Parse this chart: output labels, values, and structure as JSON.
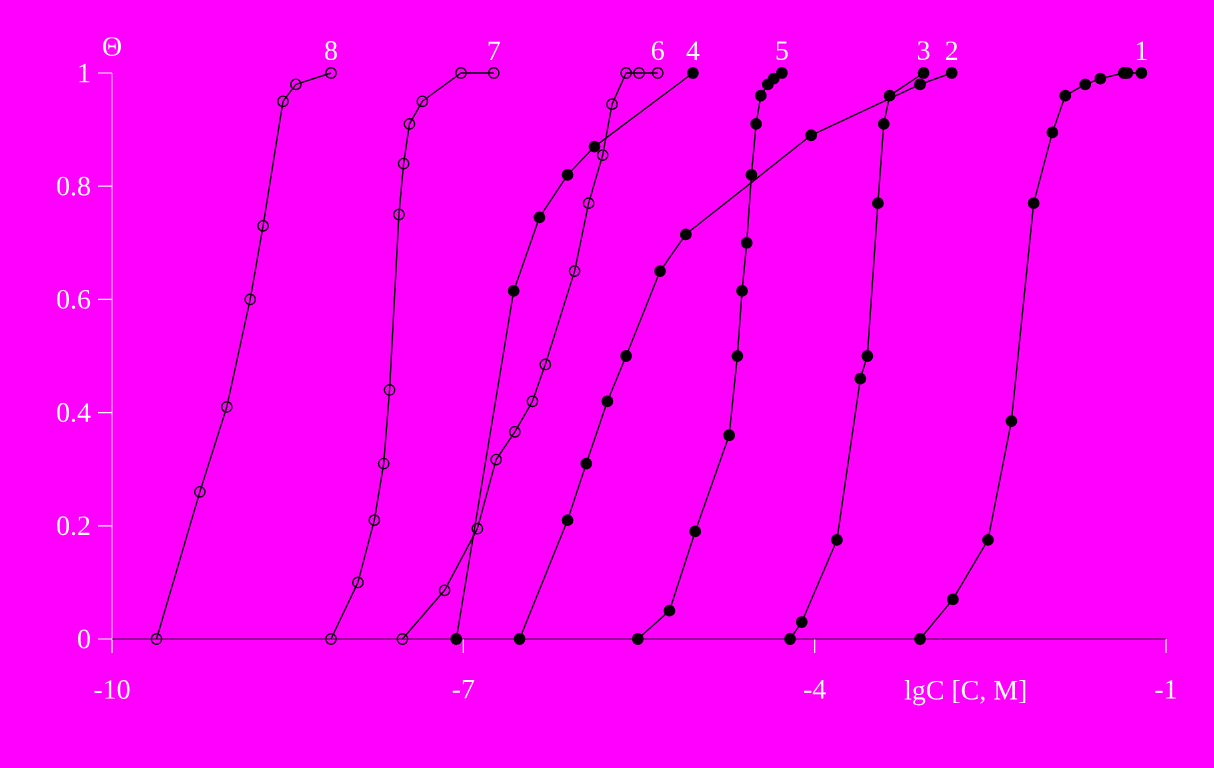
{
  "chart_data": {
    "type": "line",
    "xlabel": "lgC [C, M]",
    "ylabel": "Θ",
    "xlim": [
      -10,
      -1
    ],
    "xticks": [
      -10,
      -7,
      -4,
      -1
    ],
    "ylim": [
      0,
      1
    ],
    "yticks": [
      0,
      0.2,
      0.4,
      0.6,
      0.8,
      1
    ],
    "grid": false,
    "line_style": "solid",
    "series": [
      {
        "name": "1",
        "color": "#000000",
        "marker": "circle",
        "x": [
          -3.1,
          -2.82,
          -2.52,
          -2.32,
          -2.13,
          -1.97,
          -1.86,
          -1.69,
          -1.56,
          -1.36,
          -1.33,
          -1.21
        ],
        "values": [
          0,
          0.07,
          0.175,
          0.385,
          0.77,
          0.895,
          0.96,
          0.98,
          0.99,
          1,
          1,
          1
        ]
      },
      {
        "name": "2",
        "color": "#000000",
        "marker": "circle",
        "x": [
          -6.52,
          -6.11,
          -5.95,
          -5.77,
          -5.61,
          -5.32,
          -5.1,
          -4.03,
          -3.1,
          -2.83
        ],
        "values": [
          0,
          0.21,
          0.31,
          0.42,
          0.5,
          0.65,
          0.715,
          0.89,
          0.98,
          1.0
        ]
      },
      {
        "name": "3",
        "color": "#000000",
        "marker": "circle",
        "x": [
          -4.21,
          -4.11,
          -3.81,
          -3.61,
          -3.55,
          -3.46,
          -3.41,
          -3.36,
          -3.07
        ],
        "values": [
          0,
          0.03,
          0.175,
          0.46,
          0.5,
          0.77,
          0.91,
          0.96,
          1.0
        ]
      },
      {
        "name": "4",
        "color": "#000000",
        "marker": "circle",
        "x": [
          -7.06,
          -6.57,
          -6.35,
          -6.11,
          -5.88,
          -5.04
        ],
        "values": [
          0,
          0.615,
          0.745,
          0.82,
          0.87,
          1.0
        ]
      },
      {
        "name": "5",
        "color": "#000000",
        "marker": "circle",
        "x": [
          -5.51,
          -5.24,
          -5.02,
          -4.73,
          -4.66,
          -4.62,
          -4.58,
          -4.54,
          -4.5,
          -4.46,
          -4.4,
          -4.35,
          -4.28
        ],
        "values": [
          0,
          0.05,
          0.19,
          0.36,
          0.5,
          0.615,
          0.7,
          0.82,
          0.91,
          0.96,
          0.98,
          0.99,
          1.0
        ]
      },
      {
        "name": "6",
        "color": "#000000",
        "marker": "circle-open",
        "x": [
          -7.52,
          -7.16,
          -6.88,
          -6.72,
          -6.56,
          -6.41,
          -6.3,
          -6.05,
          -5.93,
          -5.81,
          -5.73,
          -5.61,
          -5.5,
          -5.34
        ],
        "values": [
          0,
          0.086,
          0.195,
          0.317,
          0.366,
          0.42,
          0.485,
          0.65,
          0.77,
          0.855,
          0.945,
          1,
          1,
          1
        ]
      },
      {
        "name": "7",
        "color": "#000000",
        "marker": "circle-open",
        "x": [
          -8.13,
          -7.9,
          -7.76,
          -7.68,
          -7.63,
          -7.55,
          -7.51,
          -7.46,
          -7.35,
          -7.02,
          -6.74
        ],
        "values": [
          0,
          0.1,
          0.21,
          0.31,
          0.44,
          0.75,
          0.84,
          0.91,
          0.95,
          1.0,
          1.0
        ]
      },
      {
        "name": "8",
        "color": "#000000",
        "marker": "circle-open",
        "x": [
          -9.62,
          -9.25,
          -9.02,
          -8.82,
          -8.71,
          -8.54,
          -8.43,
          -8.13
        ],
        "values": [
          0,
          0.26,
          0.41,
          0.6,
          0.73,
          0.95,
          0.98,
          1.0
        ]
      }
    ]
  }
}
